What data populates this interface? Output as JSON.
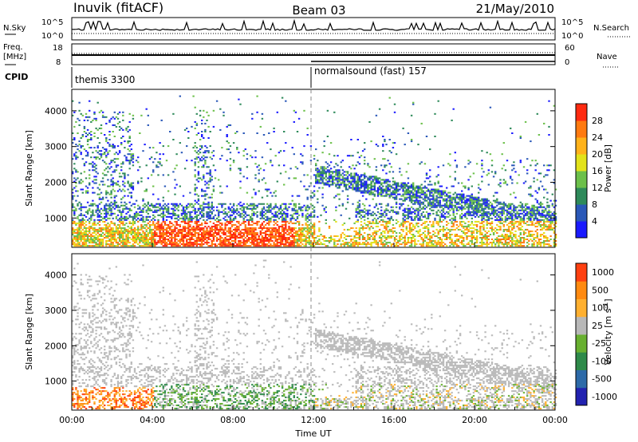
{
  "header": {
    "station": "Inuvik (fitACF)",
    "beam": "Beam 03",
    "date": "21/May/2010"
  },
  "side_labels": {
    "nsky": "N.Sky",
    "freq_line1": "Freq.",
    "freq_line2": "[MHz]",
    "cpid": "CPID",
    "nsearch": "N.Search",
    "nave": "Nave"
  },
  "panel_ticks": {
    "noise_left": [
      "10^5",
      "10^0"
    ],
    "noise_right": [
      "10^5",
      "10^0"
    ],
    "freq_left": [
      "18",
      "8"
    ],
    "freq_right": [
      "60",
      "0"
    ]
  },
  "cpid_segments": [
    {
      "label": "themis 3300",
      "start_hour": 0
    },
    {
      "label": "normalsound (fast) 157",
      "start_hour": 12
    }
  ],
  "chart_data": [
    {
      "type": "heatmap",
      "name": "power",
      "ylabel": "Slant Range [km]",
      "ylim": [
        180,
        4600
      ],
      "yticks": [
        1000,
        2000,
        3000,
        4000
      ],
      "xlim": [
        0,
        24
      ],
      "colorbar": {
        "label": "Power [dB]",
        "range": [
          0,
          32
        ],
        "ticks": [
          "4",
          "8",
          "12",
          "16",
          "20",
          "24",
          "28"
        ],
        "colors": [
          "#1a1aff",
          "#2a58b8",
          "#2e8a5a",
          "#6cc04a",
          "#e2e21a",
          "#ffb21a",
          "#ff7a10",
          "#ff2a10"
        ]
      }
    },
    {
      "type": "heatmap",
      "name": "velocity",
      "ylabel": "Slant Range [km]",
      "ylim": [
        180,
        4600
      ],
      "yticks": [
        1000,
        2000,
        3000,
        4000
      ],
      "xlim": [
        0,
        24
      ],
      "xlabel": "Time UT",
      "xticks": [
        "00:00",
        "04:00",
        "08:00",
        "12:00",
        "16:00",
        "20:00",
        "00:00"
      ],
      "colorbar": {
        "label": "Velocity [m s^-1]",
        "ticks": [
          "1000",
          "500",
          "100",
          "25",
          "-25",
          "-100",
          "-500",
          "-1000"
        ],
        "colors": [
          "#2222b0",
          "#2d6aa8",
          "#2e8a4a",
          "#68b030",
          "#b8b8b8",
          "#ffb030",
          "#ff8a10",
          "#ff4010",
          "#ff1010"
        ]
      }
    }
  ]
}
